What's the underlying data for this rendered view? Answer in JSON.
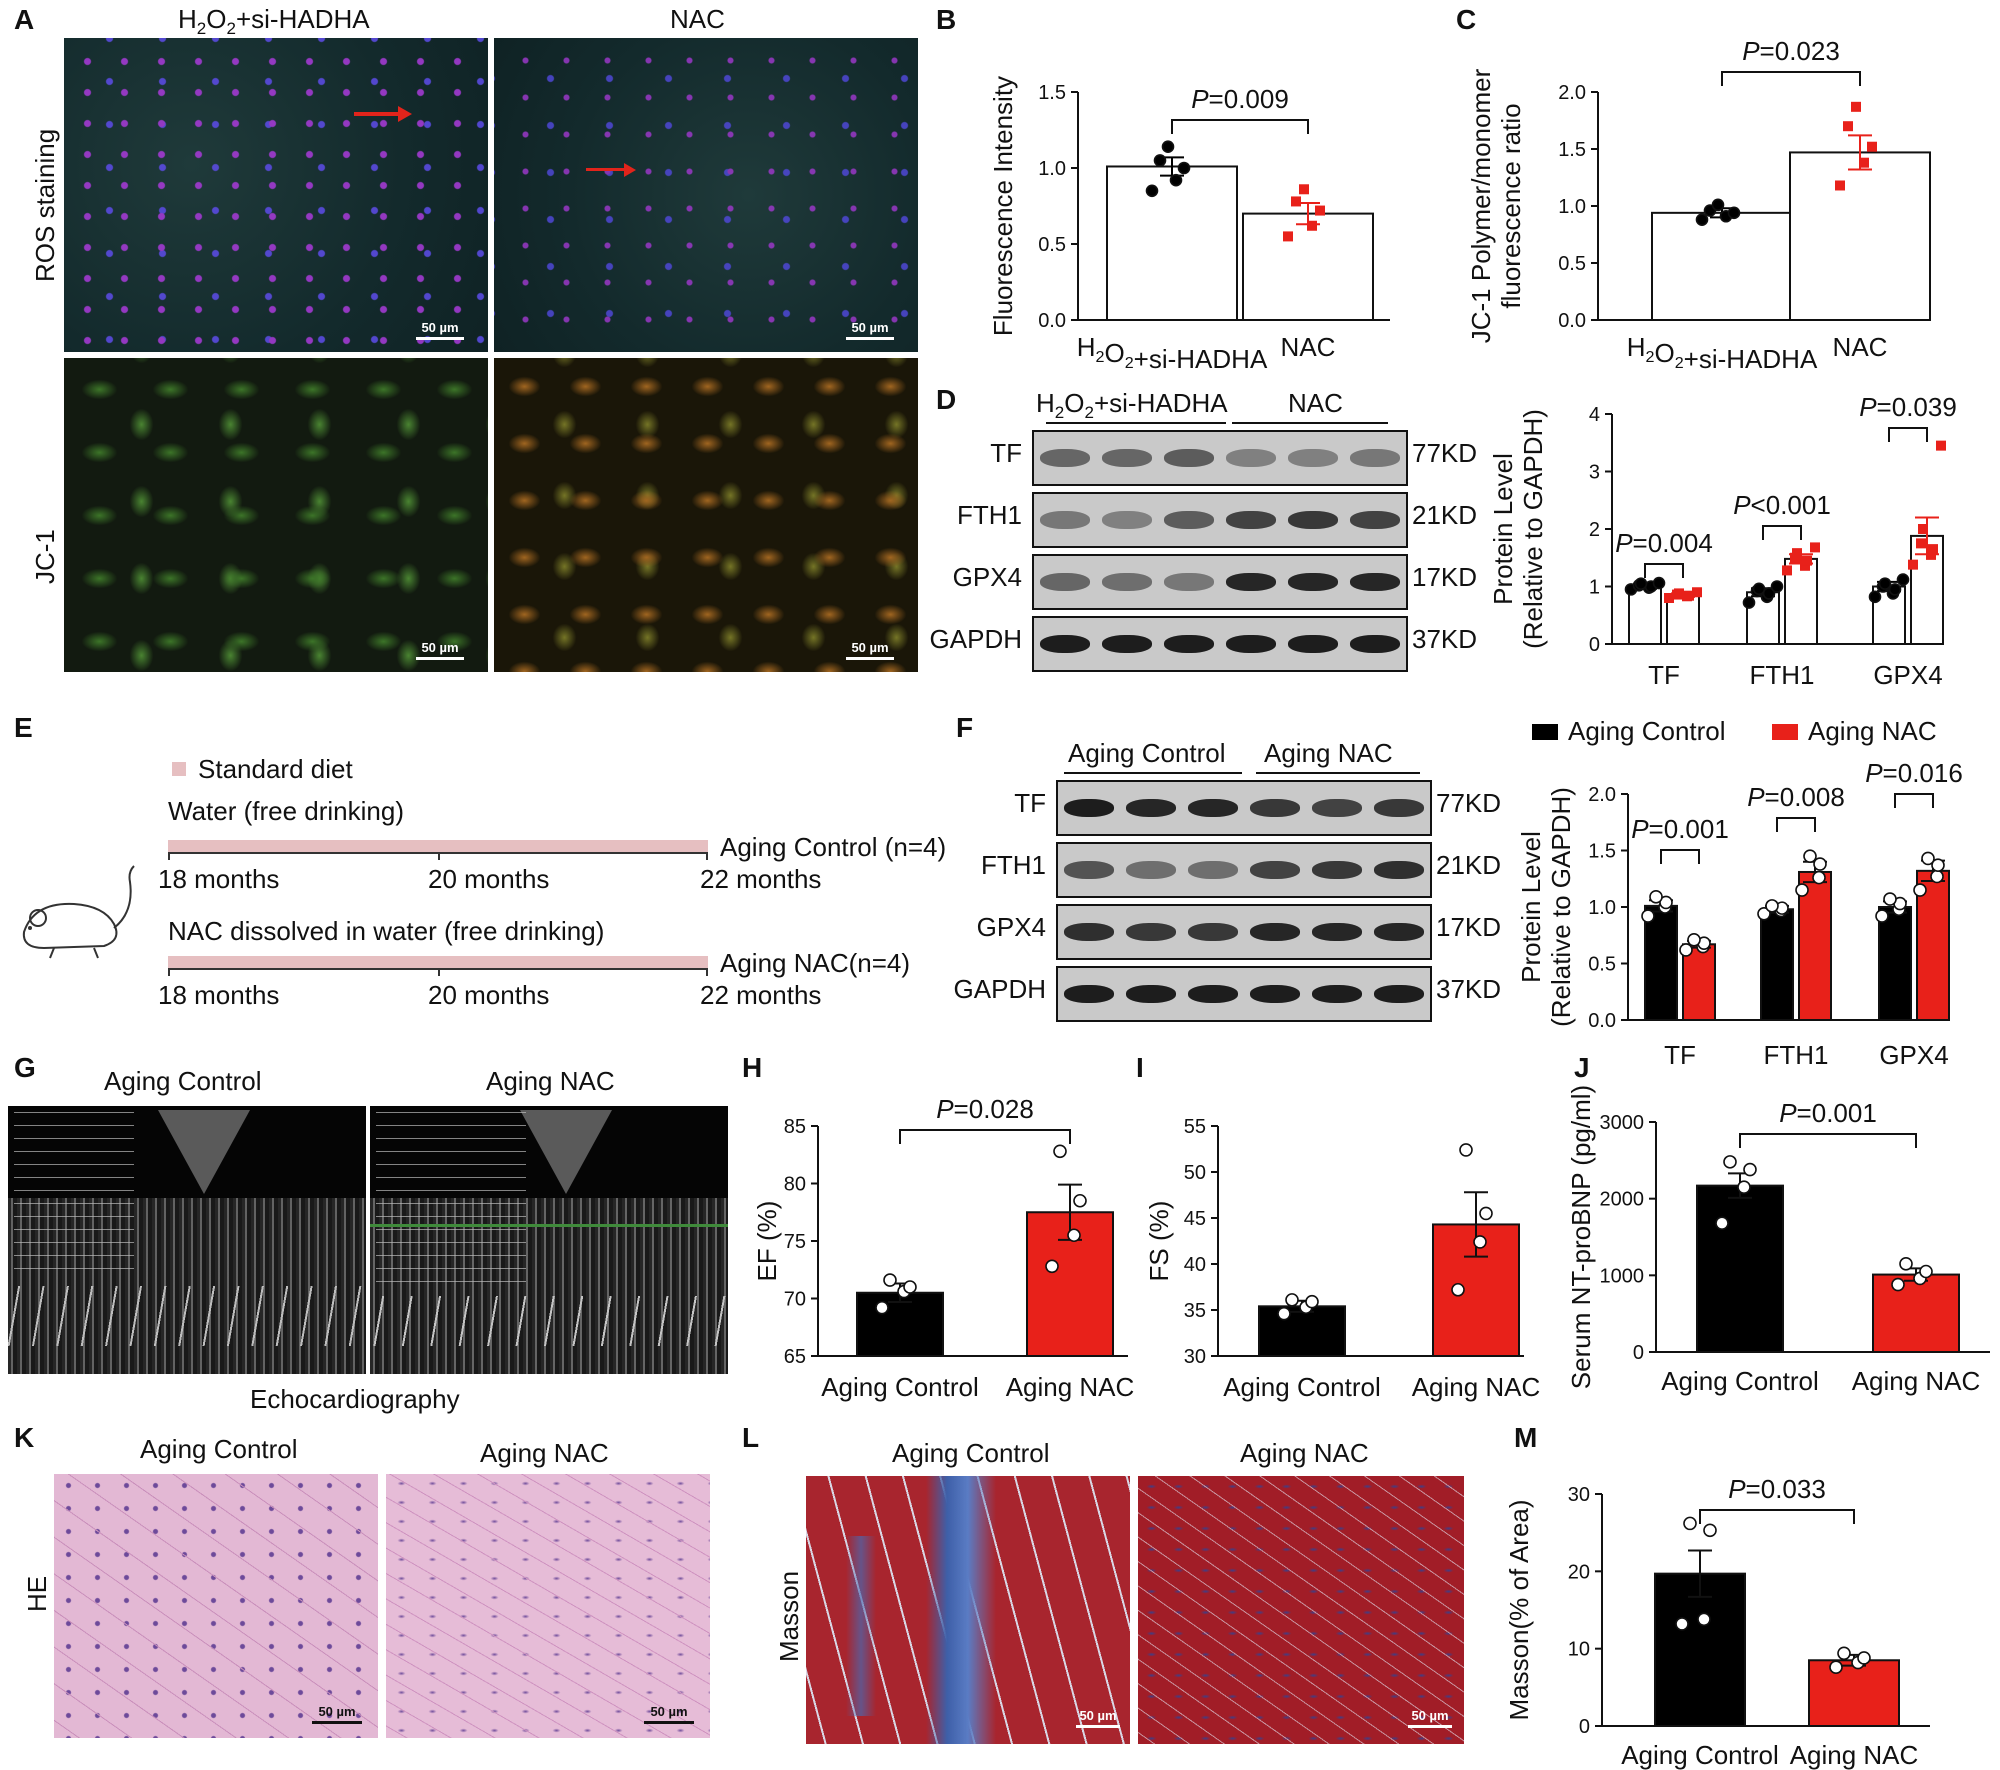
{
  "panels": {
    "A": {
      "letter": "A",
      "col1": "H2O2+si-HADHA",
      "col2": "NAC",
      "row1": "ROS staining",
      "row2": "JC-1",
      "scale": "50 µm"
    },
    "B": {
      "letter": "B"
    },
    "C": {
      "letter": "C"
    },
    "D": {
      "letter": "D",
      "group1": "H2O2+si-HADHA",
      "group2": "NAC"
    },
    "E": {
      "letter": "E",
      "legend": "Standard diet",
      "water": "Water (free drinking)",
      "nac_water": "NAC dissolved in water (free drinking)",
      "t1": "18 months",
      "t2": "20 months",
      "t3": "22 months",
      "ctrl": "Aging Control (n=4)",
      "nac": "Aging NAC(n=4)"
    },
    "F": {
      "letter": "F",
      "group1": "Aging Control",
      "group2": "Aging NAC"
    },
    "G": {
      "letter": "G",
      "col1": "Aging Control",
      "col2": "Aging NAC",
      "caption": "Echocardiography"
    },
    "H": {
      "letter": "H"
    },
    "I": {
      "letter": "I"
    },
    "J": {
      "letter": "J"
    },
    "K": {
      "letter": "K",
      "col1": "Aging Control",
      "col2": "Aging NAC",
      "row": "HE",
      "scale": "50 µm"
    },
    "L": {
      "letter": "L",
      "col1": "Aging Control",
      "col2": "Aging NAC",
      "row": "Masson",
      "scale": "50 µm"
    },
    "M": {
      "letter": "M"
    }
  },
  "blots": {
    "D": {
      "proteins": [
        "TF",
        "FTH1",
        "GPX4",
        "GAPDH"
      ],
      "sizes": [
        "77KD",
        "21KD",
        "17KD",
        "37KD"
      ]
    },
    "F": {
      "proteins": [
        "TF",
        "FTH1",
        "GPX4",
        "GAPDH"
      ],
      "sizes": [
        "77KD",
        "21KD",
        "17KD",
        "37KD"
      ]
    }
  },
  "legend_F": {
    "items": [
      {
        "name": "Aging Control",
        "color": "#000000"
      },
      {
        "name": "Aging NAC",
        "color": "#e8211a"
      }
    ]
  },
  "colors": {
    "control": "#000000",
    "nac": "#e8211a"
  },
  "chart_data": [
    {
      "id": "B",
      "type": "bar",
      "categories": [
        "H2O2+si-HADHA",
        "NAC"
      ],
      "values": [
        1.01,
        0.7
      ],
      "errors": [
        0.06,
        0.07
      ],
      "points": [
        [
          0.85,
          0.92,
          1.0,
          1.05,
          1.14
        ],
        [
          0.55,
          0.62,
          0.72,
          0.78,
          0.86
        ]
      ],
      "ylabel": "Fluorescence Intensity",
      "ylim": [
        0,
        1.5
      ],
      "yticks": [
        "0.0",
        "0.5",
        "1.0",
        "1.5"
      ],
      "bar_colors": [
        "#ffffff",
        "#ffffff"
      ],
      "point_colors": [
        "#000000",
        "#e8211a"
      ],
      "comparisons": [
        {
          "label": "P=0.009"
        }
      ]
    },
    {
      "id": "C",
      "type": "bar",
      "categories": [
        "H2O2+si-HADHA",
        "NAC"
      ],
      "values": [
        0.94,
        1.47
      ],
      "errors": [
        0.04,
        0.15
      ],
      "points": [
        [
          0.88,
          0.91,
          0.94,
          0.96,
          1.01
        ],
        [
          1.18,
          1.38,
          1.52,
          1.7,
          1.87
        ]
      ],
      "ylabel": "JC-1 Polymer/monomer fluorescence ratio",
      "ylim": [
        0,
        2.0
      ],
      "yticks": [
        "0.0",
        "0.5",
        "1.0",
        "1.5",
        "2.0"
      ],
      "bar_colors": [
        "#ffffff",
        "#ffffff"
      ],
      "point_colors": [
        "#000000",
        "#e8211a"
      ],
      "comparisons": [
        {
          "label": "P=0.023"
        }
      ]
    },
    {
      "id": "D",
      "type": "grouped-bar",
      "categories": [
        "TF",
        "FTH1",
        "GPX4"
      ],
      "series": [
        {
          "values": [
            1.0,
            0.9,
            1.0
          ],
          "errors": [
            0.04,
            0.07,
            0.08
          ],
          "points": [
            [
              0.95,
              0.98,
              1.0,
              1.02,
              1.05,
              1.06
            ],
            [
              0.72,
              0.82,
              0.88,
              0.92,
              0.96,
              1.0
            ],
            [
              0.82,
              0.88,
              0.95,
              1.0,
              1.05,
              1.12
            ]
          ]
        },
        {
          "values": [
            0.85,
            1.48,
            1.88
          ],
          "errors": [
            0.03,
            0.08,
            0.32
          ],
          "points": [
            [
              0.8,
              0.83,
              0.84,
              0.86,
              0.88,
              0.9
            ],
            [
              1.28,
              1.36,
              1.45,
              1.5,
              1.58,
              1.68
            ],
            [
              1.38,
              1.55,
              1.65,
              1.75,
              2.0,
              3.45
            ]
          ]
        }
      ],
      "ylabel": "Protein Level (Relative to GAPDH)",
      "ylim": [
        0,
        4
      ],
      "yticks": [
        "0",
        "1",
        "2",
        "3",
        "4"
      ],
      "bar_colors": [
        "#ffffff",
        "#ffffff"
      ],
      "point_colors": [
        "#000000",
        "#e8211a"
      ],
      "comparisons": [
        {
          "label": "P=0.004"
        },
        {
          "label": "P<0.001"
        },
        {
          "label": "P=0.039"
        }
      ]
    },
    {
      "id": "F",
      "type": "grouped-bar",
      "categories": [
        "TF",
        "FTH1",
        "GPX4"
      ],
      "series": [
        {
          "name": "Aging Control",
          "values": [
            1.01,
            0.98,
            1.0
          ],
          "errors": [
            0.05,
            0.03,
            0.05
          ],
          "points": [
            [
              0.92,
              1.0,
              1.04,
              1.09
            ],
            [
              0.94,
              0.97,
              0.99,
              1.01
            ],
            [
              0.92,
              0.98,
              1.03,
              1.07
            ]
          ]
        },
        {
          "name": "Aging NAC",
          "values": [
            0.67,
            1.31,
            1.32
          ],
          "errors": [
            0.03,
            0.09,
            0.09
          ],
          "points": [
            [
              0.62,
              0.65,
              0.68,
              0.71
            ],
            [
              1.15,
              1.26,
              1.38,
              1.45
            ],
            [
              1.15,
              1.27,
              1.37,
              1.43
            ]
          ]
        }
      ],
      "ylabel": "Protein Level (Relative to GAPDH)",
      "ylim": [
        0,
        2.0
      ],
      "yticks": [
        "0.0",
        "0.5",
        "1.0",
        "1.5",
        "2.0"
      ],
      "bar_colors": [
        "#000000",
        "#e8211a"
      ],
      "point_colors": [
        "#ffffff",
        "#ffffff"
      ],
      "comparisons": [
        {
          "label": "P=0.001"
        },
        {
          "label": "P=0.008"
        },
        {
          "label": "P=0.016"
        }
      ]
    },
    {
      "id": "H",
      "type": "bar",
      "categories": [
        "Aging Control",
        "Aging NAC"
      ],
      "values": [
        70.5,
        77.5
      ],
      "errors": [
        0.8,
        2.4
      ],
      "points": [
        [
          69.2,
          70.6,
          71.0,
          71.6
        ],
        [
          72.8,
          75.5,
          78.5,
          82.8
        ]
      ],
      "ylabel": "EF (%)",
      "ylim": [
        65,
        85
      ],
      "yticks": [
        "65",
        "70",
        "75",
        "80",
        "85"
      ],
      "bar_colors": [
        "#000000",
        "#e8211a"
      ],
      "point_colors": [
        "#ffffff",
        "#ffffff"
      ],
      "comparisons": [
        {
          "label": "P=0.028"
        }
      ]
    },
    {
      "id": "I",
      "type": "bar",
      "categories": [
        "Aging Control",
        "Aging NAC"
      ],
      "values": [
        35.4,
        44.3
      ],
      "errors": [
        0.6,
        3.5
      ],
      "points": [
        [
          34.6,
          35.3,
          35.9,
          36.1
        ],
        [
          37.2,
          42.4,
          45.5,
          52.4
        ]
      ],
      "ylabel": "FS (%)",
      "ylim": [
        30,
        55
      ],
      "yticks": [
        "30",
        "35",
        "40",
        "45",
        "50",
        "55"
      ],
      "bar_colors": [
        "#000000",
        "#e8211a"
      ],
      "point_colors": [
        "#ffffff",
        "#ffffff"
      ],
      "comparisons": []
    },
    {
      "id": "J",
      "type": "bar",
      "categories": [
        "Aging Control",
        "Aging NAC"
      ],
      "values": [
        2170,
        1010
      ],
      "errors": [
        160,
        80
      ],
      "points": [
        [
          1680,
          2150,
          2380,
          2480
        ],
        [
          880,
          960,
          1050,
          1150
        ]
      ],
      "ylabel": "Serum NT-proBNP (pg/ml)",
      "ylim": [
        0,
        3000
      ],
      "yticks": [
        "0",
        "1000",
        "2000",
        "3000"
      ],
      "bar_colors": [
        "#000000",
        "#e8211a"
      ],
      "point_colors": [
        "#ffffff",
        "#ffffff"
      ],
      "comparisons": [
        {
          "label": "P=0.001"
        }
      ]
    },
    {
      "id": "M",
      "type": "bar",
      "categories": [
        "Aging Control",
        "Aging NAC"
      ],
      "values": [
        19.7,
        8.5
      ],
      "errors": [
        3.0,
        0.7
      ],
      "points": [
        [
          13.2,
          13.8,
          25.3,
          26.2
        ],
        [
          7.6,
          8.2,
          8.8,
          9.4
        ]
      ],
      "ylabel": "Masson(% of Area)",
      "ylim": [
        0,
        30
      ],
      "yticks": [
        "0",
        "10",
        "20",
        "30"
      ],
      "bar_colors": [
        "#000000",
        "#e8211a"
      ],
      "point_colors": [
        "#ffffff",
        "#ffffff"
      ],
      "comparisons": [
        {
          "label": "P=0.033"
        }
      ]
    }
  ]
}
